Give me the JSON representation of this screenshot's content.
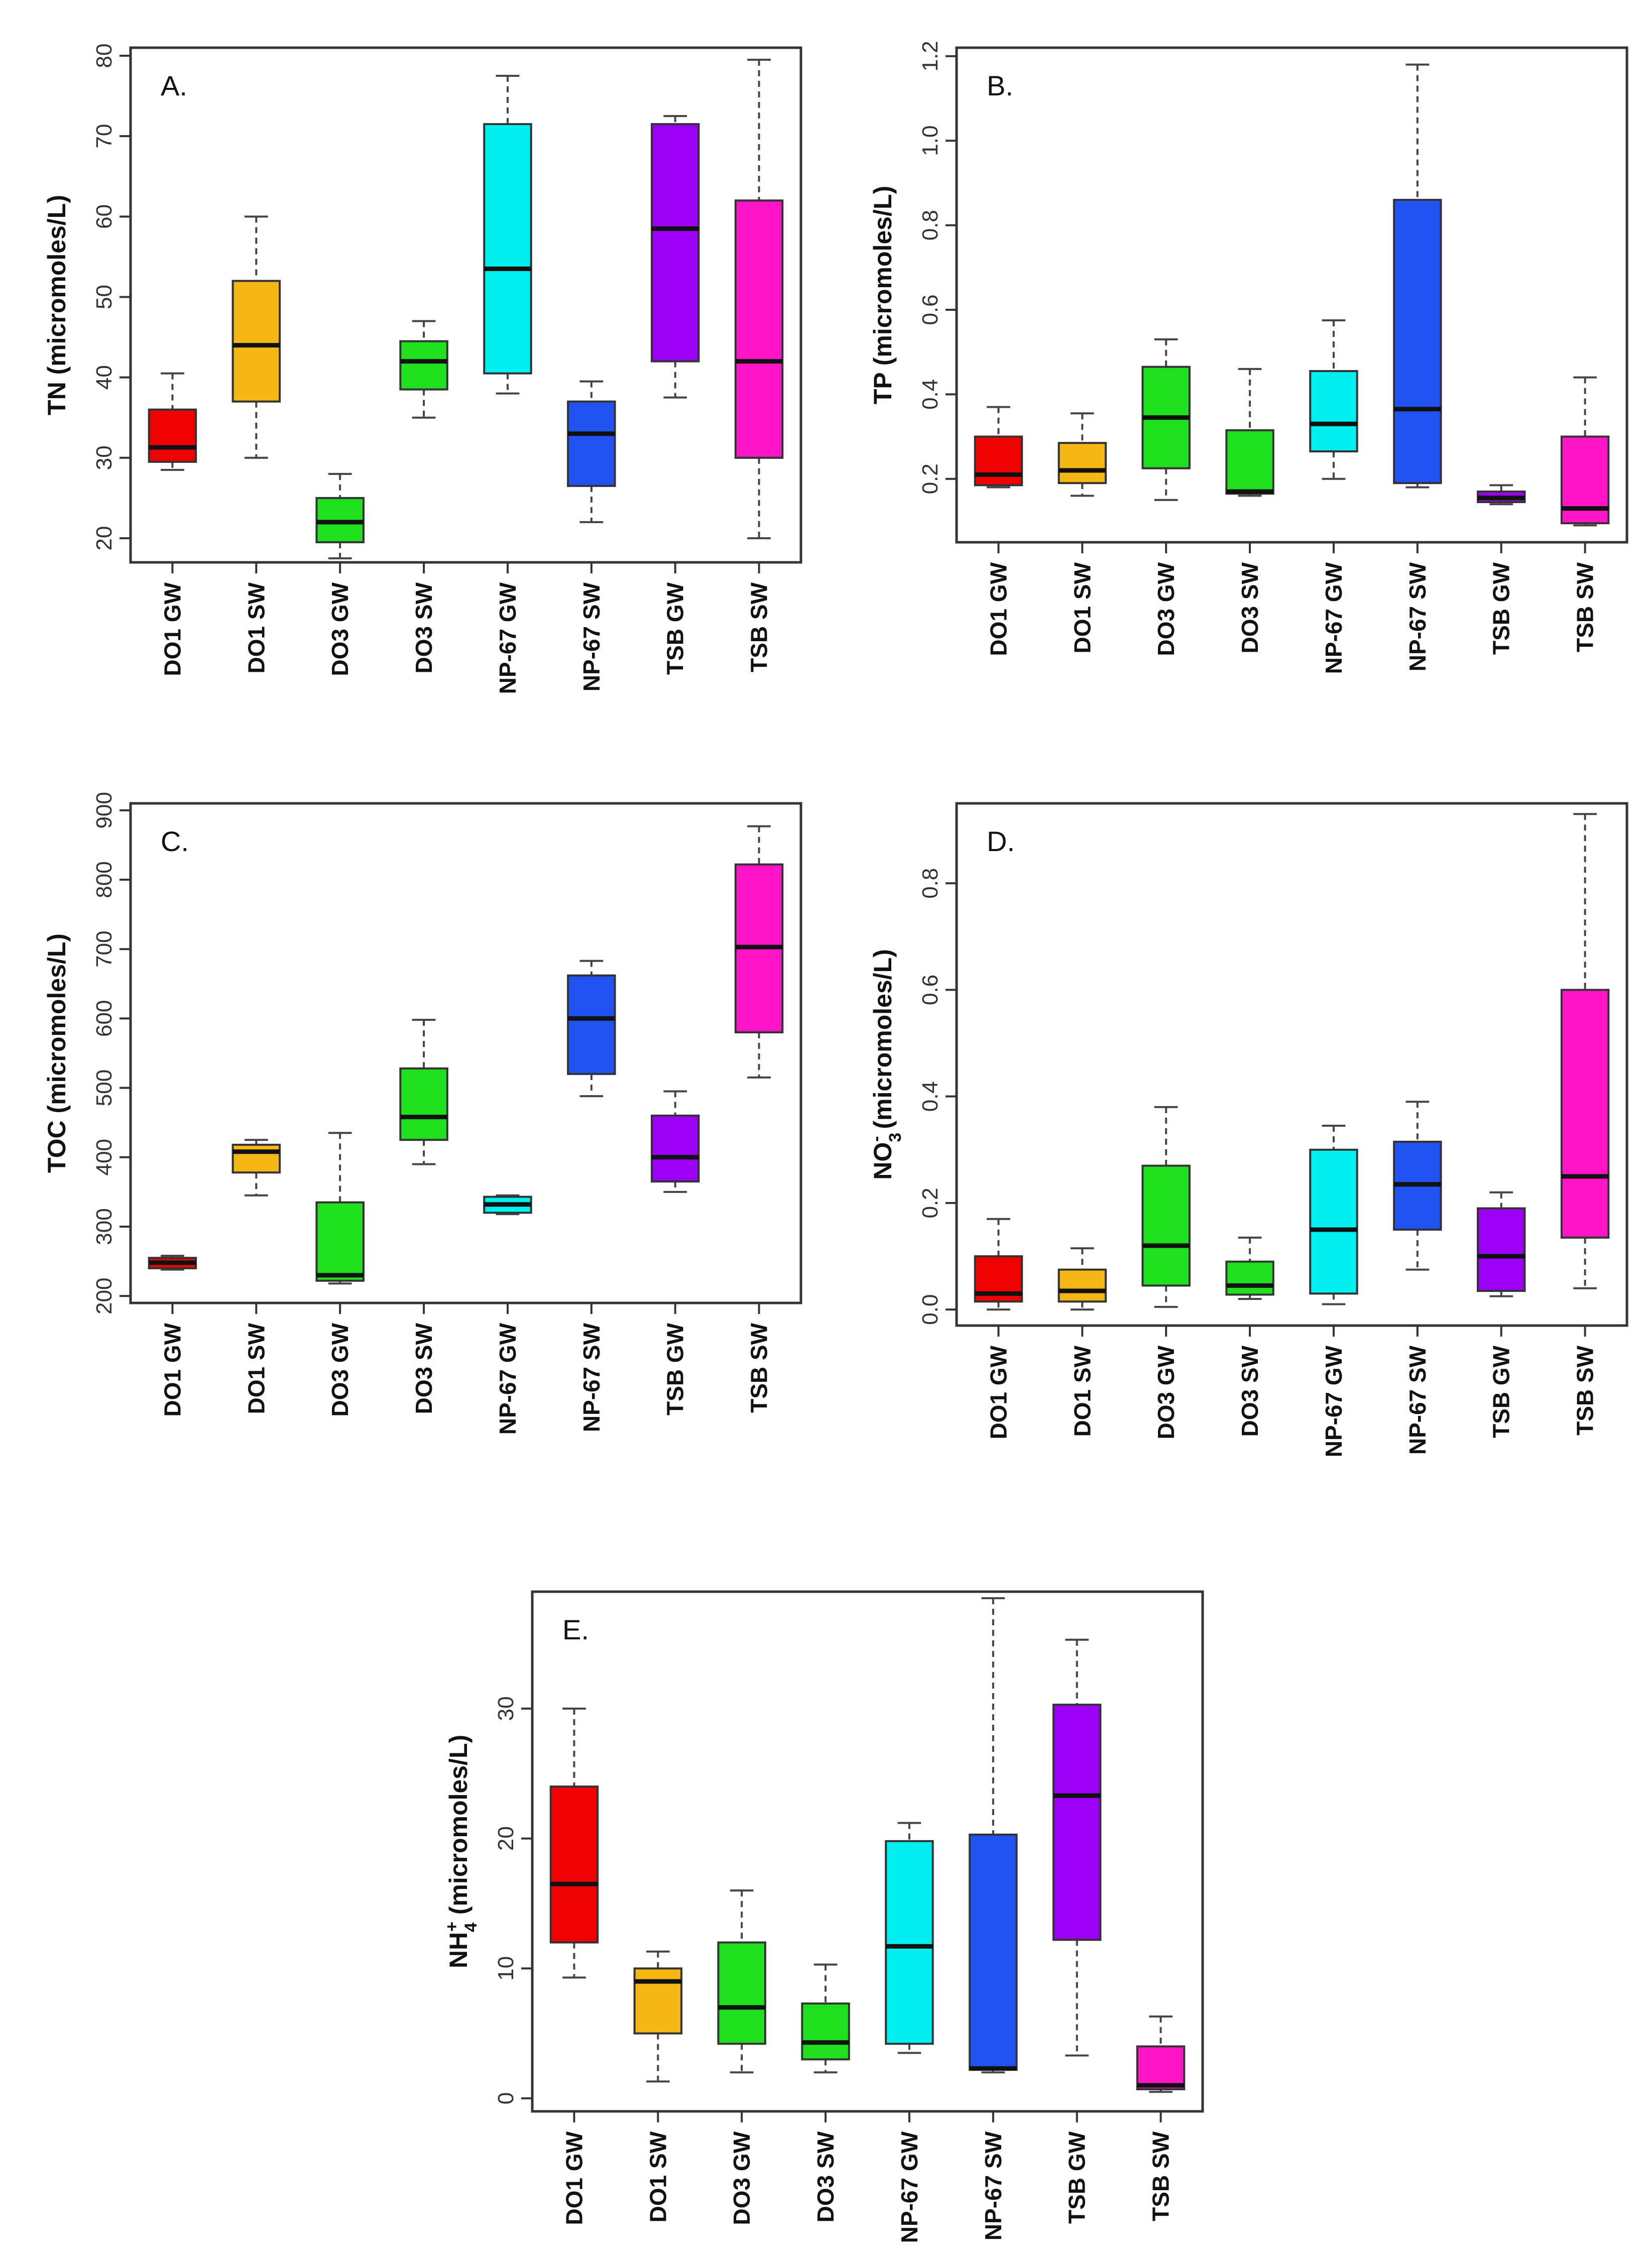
{
  "colors": {
    "DO1 GW": "#f00000",
    "DO1 SW": "#f5b715",
    "DO3 GW": "#1ee01e",
    "DO3 SW": "#1ee01e",
    "NP-67 GW": "#00f0f0",
    "NP-67 SW": "#1f52f0",
    "TSB GW": "#9b00f5",
    "TSB SW": "#ff14c8"
  },
  "chart_data": [
    {
      "type": "box",
      "panel": "A.",
      "ylabel": "TN (micromoles/L)",
      "ylim": [
        17,
        81
      ],
      "yticks": [
        20,
        30,
        40,
        50,
        60,
        70,
        80
      ],
      "categories": [
        "DO1 GW",
        "DO1 SW",
        "DO3 GW",
        "DO3 SW",
        "NP-67 GW",
        "NP-67 SW",
        "TSB GW",
        "TSB SW"
      ],
      "boxes": [
        {
          "min": 28.5,
          "q1": 29.5,
          "median": 31.3,
          "q3": 36.0,
          "max": 40.5
        },
        {
          "min": 30.0,
          "q1": 37.0,
          "median": 44.0,
          "q3": 52.0,
          "max": 60.0
        },
        {
          "min": 17.5,
          "q1": 19.5,
          "median": 22.0,
          "q3": 25.0,
          "max": 28.0
        },
        {
          "min": 35.0,
          "q1": 38.5,
          "median": 42.0,
          "q3": 44.5,
          "max": 47.0
        },
        {
          "min": 38.0,
          "q1": 40.5,
          "median": 53.5,
          "q3": 71.5,
          "max": 77.5
        },
        {
          "min": 22.0,
          "q1": 26.5,
          "median": 33.0,
          "q3": 37.0,
          "max": 39.5
        },
        {
          "min": 37.5,
          "q1": 42.0,
          "median": 58.5,
          "q3": 71.5,
          "max": 72.5
        },
        {
          "min": 20.0,
          "q1": 30.0,
          "median": 42.0,
          "q3": 62.0,
          "max": 79.5
        }
      ]
    },
    {
      "type": "box",
      "panel": "B.",
      "ylabel": "TP (micromoles/L)",
      "ylim": [
        0.05,
        1.22
      ],
      "yticks": [
        0.2,
        0.4,
        0.6,
        0.8,
        1.0,
        1.2
      ],
      "categories": [
        "DO1 GW",
        "DO1 SW",
        "DO3 GW",
        "DO3 SW",
        "NP-67 GW",
        "NP-67 SW",
        "TSB GW",
        "TSB SW"
      ],
      "boxes": [
        {
          "min": 0.18,
          "q1": 0.185,
          "median": 0.21,
          "q3": 0.3,
          "max": 0.37
        },
        {
          "min": 0.16,
          "q1": 0.19,
          "median": 0.22,
          "q3": 0.285,
          "max": 0.355
        },
        {
          "min": 0.15,
          "q1": 0.225,
          "median": 0.345,
          "q3": 0.465,
          "max": 0.53
        },
        {
          "min": 0.16,
          "q1": 0.165,
          "median": 0.17,
          "q3": 0.315,
          "max": 0.46
        },
        {
          "min": 0.2,
          "q1": 0.265,
          "median": 0.33,
          "q3": 0.455,
          "max": 0.575
        },
        {
          "min": 0.18,
          "q1": 0.19,
          "median": 0.365,
          "q3": 0.86,
          "max": 1.18
        },
        {
          "min": 0.14,
          "q1": 0.145,
          "median": 0.155,
          "q3": 0.17,
          "max": 0.185
        },
        {
          "min": 0.09,
          "q1": 0.095,
          "median": 0.13,
          "q3": 0.3,
          "max": 0.44
        }
      ]
    },
    {
      "type": "box",
      "panel": "C.",
      "ylabel": "TOC (micromoles/L)",
      "ylim": [
        190,
        910
      ],
      "yticks": [
        200,
        300,
        400,
        500,
        600,
        700,
        800,
        900
      ],
      "categories": [
        "DO1 GW",
        "DO1 SW",
        "DO3 GW",
        "DO3 SW",
        "NP-67 GW",
        "NP-67 SW",
        "TSB GW",
        "TSB SW"
      ],
      "boxes": [
        {
          "min": 238,
          "q1": 240,
          "median": 248,
          "q3": 255,
          "max": 258
        },
        {
          "min": 345,
          "q1": 378,
          "median": 408,
          "q3": 418,
          "max": 425
        },
        {
          "min": 218,
          "q1": 222,
          "median": 230,
          "q3": 335,
          "max": 435
        },
        {
          "min": 390,
          "q1": 425,
          "median": 458,
          "q3": 528,
          "max": 598
        },
        {
          "min": 318,
          "q1": 320,
          "median": 332,
          "q3": 343,
          "max": 345
        },
        {
          "min": 488,
          "q1": 520,
          "median": 600,
          "q3": 662,
          "max": 683
        },
        {
          "min": 350,
          "q1": 365,
          "median": 400,
          "q3": 460,
          "max": 495
        },
        {
          "min": 515,
          "q1": 580,
          "median": 703,
          "q3": 822,
          "max": 877
        }
      ]
    },
    {
      "type": "box",
      "panel": "D.",
      "ylabel": "NO3- (micromoles/L)",
      "ylim": [
        -0.03,
        0.95
      ],
      "yticks": [
        0.0,
        0.2,
        0.4,
        0.6,
        0.8
      ],
      "categories": [
        "DO1 GW",
        "DO1 SW",
        "DO3 GW",
        "DO3 SW",
        "NP-67 GW",
        "NP-67 SW",
        "TSB GW",
        "TSB SW"
      ],
      "boxes": [
        {
          "min": 0.0,
          "q1": 0.015,
          "median": 0.03,
          "q3": 0.1,
          "max": 0.17
        },
        {
          "min": 0.0,
          "q1": 0.015,
          "median": 0.035,
          "q3": 0.075,
          "max": 0.115
        },
        {
          "min": 0.005,
          "q1": 0.045,
          "median": 0.12,
          "q3": 0.27,
          "max": 0.38
        },
        {
          "min": 0.02,
          "q1": 0.028,
          "median": 0.045,
          "q3": 0.09,
          "max": 0.135
        },
        {
          "min": 0.01,
          "q1": 0.03,
          "median": 0.15,
          "q3": 0.3,
          "max": 0.345
        },
        {
          "min": 0.075,
          "q1": 0.15,
          "median": 0.235,
          "q3": 0.315,
          "max": 0.39
        },
        {
          "min": 0.025,
          "q1": 0.035,
          "median": 0.1,
          "q3": 0.19,
          "max": 0.22
        },
        {
          "min": 0.04,
          "q1": 0.135,
          "median": 0.25,
          "q3": 0.6,
          "max": 0.93
        }
      ]
    },
    {
      "type": "box",
      "panel": "E.",
      "ylabel": "NH4+ (micromoles/L)",
      "ylim": [
        -1,
        39
      ],
      "yticks": [
        0,
        10,
        20,
        30
      ],
      "categories": [
        "DO1 GW",
        "DO1 SW",
        "DO3 GW",
        "DO3 SW",
        "NP-67 GW",
        "NP-67 SW",
        "TSB GW",
        "TSB SW"
      ],
      "boxes": [
        {
          "min": 9.3,
          "q1": 12.0,
          "median": 16.5,
          "q3": 24.0,
          "max": 30.0
        },
        {
          "min": 1.3,
          "q1": 5.0,
          "median": 9.0,
          "q3": 10.0,
          "max": 11.3
        },
        {
          "min": 2.0,
          "q1": 4.2,
          "median": 7.0,
          "q3": 12.0,
          "max": 16.0
        },
        {
          "min": 2.0,
          "q1": 3.0,
          "median": 4.3,
          "q3": 7.3,
          "max": 10.3
        },
        {
          "min": 3.5,
          "q1": 4.2,
          "median": 11.7,
          "q3": 19.8,
          "max": 21.2
        },
        {
          "min": 2.0,
          "q1": 2.2,
          "median": 2.3,
          "q3": 20.3,
          "max": 38.5
        },
        {
          "min": 3.3,
          "q1": 12.2,
          "median": 23.3,
          "q3": 30.3,
          "max": 35.3
        },
        {
          "min": 0.5,
          "q1": 0.7,
          "median": 1.0,
          "q3": 4.0,
          "max": 6.3
        }
      ]
    }
  ]
}
